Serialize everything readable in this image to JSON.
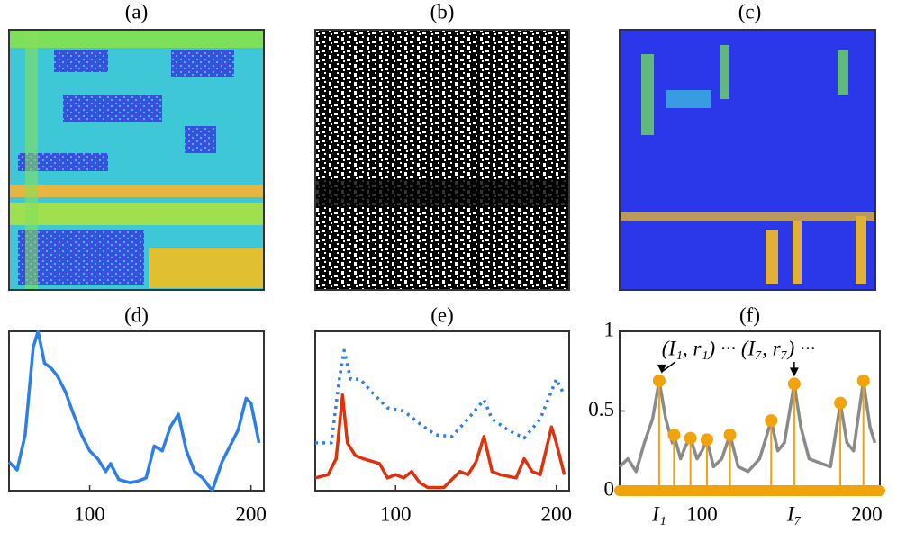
{
  "chart_data": [
    {
      "type": "image",
      "title": "(a)"
    },
    {
      "type": "image",
      "title": "(b)"
    },
    {
      "type": "image",
      "title": "(c)"
    },
    {
      "type": "line",
      "title": "(d)",
      "xlim": [
        50,
        208
      ],
      "xticks": [
        100,
        200
      ],
      "ylim": [
        0,
        1
      ],
      "series": [
        {
          "color": "#2b7fe6",
          "style": "solid",
          "x": [
            50,
            55,
            60,
            65,
            68,
            72,
            76,
            80,
            85,
            90,
            95,
            100,
            105,
            110,
            113,
            118,
            125,
            130,
            135,
            140,
            145,
            150,
            155,
            160,
            165,
            170,
            176,
            182,
            187,
            192,
            197,
            200,
            205
          ],
          "values": [
            0.18,
            0.13,
            0.35,
            0.9,
            1.0,
            0.8,
            0.77,
            0.72,
            0.62,
            0.48,
            0.35,
            0.25,
            0.2,
            0.12,
            0.17,
            0.07,
            0.05,
            0.06,
            0.08,
            0.28,
            0.25,
            0.4,
            0.48,
            0.25,
            0.12,
            0.08,
            0.0,
            0.18,
            0.28,
            0.38,
            0.58,
            0.55,
            0.3
          ]
        }
      ]
    },
    {
      "type": "line",
      "title": "(e)",
      "xlim": [
        50,
        208
      ],
      "xticks": [
        100,
        200
      ],
      "ylim": [
        0,
        1
      ],
      "series": [
        {
          "color": "#e0310a",
          "style": "solid",
          "x": [
            50,
            58,
            63,
            67,
            70,
            75,
            80,
            90,
            95,
            100,
            105,
            110,
            115,
            120,
            130,
            140,
            145,
            150,
            155,
            160,
            165,
            175,
            180,
            185,
            190,
            197,
            200,
            205
          ],
          "values": [
            0.08,
            0.1,
            0.2,
            0.6,
            0.3,
            0.22,
            0.2,
            0.17,
            0.08,
            0.1,
            0.08,
            0.12,
            0.05,
            0.02,
            0.02,
            0.12,
            0.1,
            0.18,
            0.34,
            0.12,
            0.1,
            0.08,
            0.2,
            0.12,
            0.1,
            0.4,
            0.3,
            0.1
          ]
        },
        {
          "color": "#2b7fe6",
          "style": "dotted",
          "x": [
            50,
            60,
            65,
            68,
            72,
            78,
            85,
            95,
            105,
            115,
            125,
            135,
            145,
            155,
            160,
            170,
            180,
            190,
            200,
            205
          ],
          "values": [
            0.3,
            0.3,
            0.7,
            0.88,
            0.7,
            0.7,
            0.62,
            0.52,
            0.5,
            0.42,
            0.35,
            0.34,
            0.45,
            0.57,
            0.45,
            0.38,
            0.33,
            0.45,
            0.7,
            0.6
          ]
        }
      ]
    },
    {
      "type": "stem",
      "title": "(f)",
      "xlim": [
        50,
        208
      ],
      "xticks": [
        100,
        200
      ],
      "ylim": [
        0,
        1
      ],
      "yticks": [
        0,
        0.5,
        1
      ],
      "series": [
        {
          "color": "#8a8a8a",
          "style": "solid",
          "x": [
            50,
            55,
            60,
            65,
            70,
            74,
            78,
            82,
            83,
            87,
            90,
            93,
            97,
            100,
            103,
            107,
            112,
            117,
            122,
            128,
            135,
            142,
            146,
            150,
            156,
            160,
            165,
            170,
            178,
            184,
            188,
            192,
            198,
            202,
            205
          ],
          "values": [
            0.15,
            0.2,
            0.12,
            0.3,
            0.45,
            0.69,
            0.45,
            0.3,
            0.35,
            0.2,
            0.28,
            0.33,
            0.2,
            0.25,
            0.32,
            0.15,
            0.2,
            0.35,
            0.15,
            0.12,
            0.2,
            0.44,
            0.25,
            0.3,
            0.67,
            0.4,
            0.2,
            0.18,
            0.15,
            0.55,
            0.3,
            0.25,
            0.69,
            0.4,
            0.3
          ]
        }
      ],
      "stems": {
        "color": "#f0a30a",
        "x": [
          74,
          83,
          93,
          103,
          117,
          142,
          156,
          184,
          198
        ],
        "values": [
          0.69,
          0.35,
          0.33,
          0.32,
          0.35,
          0.44,
          0.67,
          0.55,
          0.69
        ]
      },
      "annotation": "(I₁, r₁) ··· (I₇, r₇) ···",
      "x_labels": [
        "I₁",
        "I₇"
      ]
    }
  ]
}
